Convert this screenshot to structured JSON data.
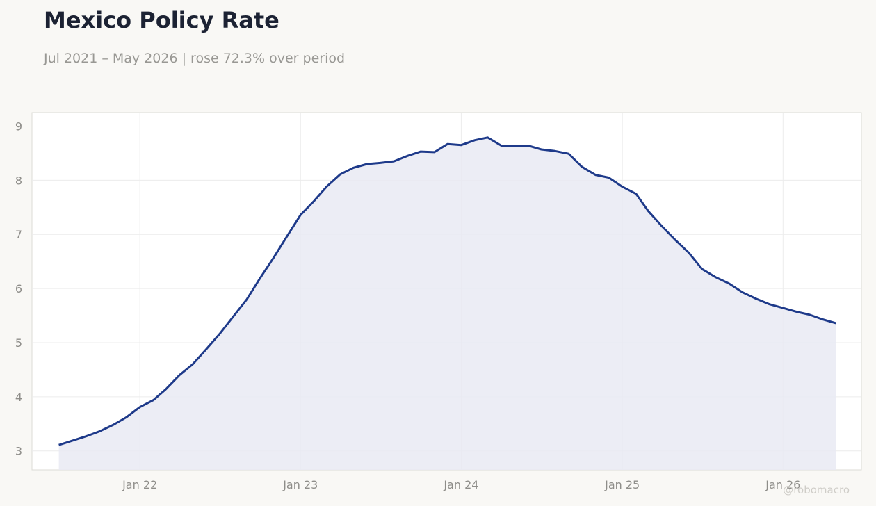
{
  "header": {
    "title": "Mexico Policy Rate",
    "subtitle": "Jul 2021 – May 2026 | rose 72.3% over period"
  },
  "watermark": "@robomacro",
  "colors": {
    "line": "#1e3a8a",
    "fill": "#e9eaf3",
    "grid": "#ececec",
    "background": "#f9f8f5",
    "plot_background": "#ffffff"
  },
  "chart_data": {
    "type": "area",
    "title": "Mexico Policy Rate",
    "subtitle": "Jul 2021 – May 2026 | rose 72.3% over period",
    "xlabel": "",
    "ylabel": "",
    "grid": true,
    "ylim": [
      2.65,
      9.25
    ],
    "xlim": [
      "2021-05-01",
      "2026-06-28"
    ],
    "y_ticks": [
      3,
      4,
      5,
      6,
      7,
      8,
      9
    ],
    "x_ticks": [
      {
        "date": "2022-01-01",
        "label": "Jan 22"
      },
      {
        "date": "2023-01-01",
        "label": "Jan 23"
      },
      {
        "date": "2024-01-01",
        "label": "Jan 24"
      },
      {
        "date": "2025-01-01",
        "label": "Jan 25"
      },
      {
        "date": "2026-01-01",
        "label": "Jan 26"
      }
    ],
    "series": [
      {
        "x": [
          "2021-07-01",
          "2021-08-01",
          "2021-09-01",
          "2021-10-01",
          "2021-11-01",
          "2021-12-01",
          "2022-01-01",
          "2022-02-01",
          "2022-03-01",
          "2022-04-01",
          "2022-05-01",
          "2022-06-01",
          "2022-07-01",
          "2022-08-01",
          "2022-09-01",
          "2022-10-01",
          "2022-11-01",
          "2022-12-01",
          "2023-01-01",
          "2023-02-01",
          "2023-03-01",
          "2023-04-01",
          "2023-05-01",
          "2023-06-01",
          "2023-07-01",
          "2023-08-01",
          "2023-09-01",
          "2023-10-01",
          "2023-11-01",
          "2023-12-01",
          "2024-01-01",
          "2024-02-01",
          "2024-03-01",
          "2024-04-01",
          "2024-05-01",
          "2024-06-01",
          "2024-07-01",
          "2024-08-01",
          "2024-09-01",
          "2024-10-01",
          "2024-11-01",
          "2024-12-01",
          "2025-01-01",
          "2025-02-01",
          "2025-03-01",
          "2025-04-01",
          "2025-05-01",
          "2025-06-01",
          "2025-07-01",
          "2025-08-01",
          "2025-09-01",
          "2025-10-01",
          "2025-11-01",
          "2025-12-01",
          "2026-01-01",
          "2026-02-01",
          "2026-03-01",
          "2026-04-01",
          "2026-05-01"
        ],
        "values": [
          3.11,
          3.19,
          3.27,
          3.36,
          3.48,
          3.62,
          3.81,
          3.94,
          4.14,
          4.4,
          4.6,
          4.88,
          5.16,
          5.48,
          5.8,
          6.19,
          6.57,
          6.96,
          7.36,
          7.62,
          7.88,
          8.11,
          8.23,
          8.3,
          8.32,
          8.35,
          8.45,
          8.53,
          8.52,
          8.67,
          8.65,
          8.74,
          8.79,
          8.64,
          8.63,
          8.64,
          8.57,
          8.54,
          8.49,
          8.25,
          8.1,
          8.05,
          7.88,
          7.75,
          7.43,
          7.15,
          6.9,
          6.66,
          6.36,
          6.21,
          6.09,
          5.93,
          5.81,
          5.71,
          5.64,
          5.57,
          5.52,
          5.43,
          5.36
        ]
      }
    ]
  }
}
